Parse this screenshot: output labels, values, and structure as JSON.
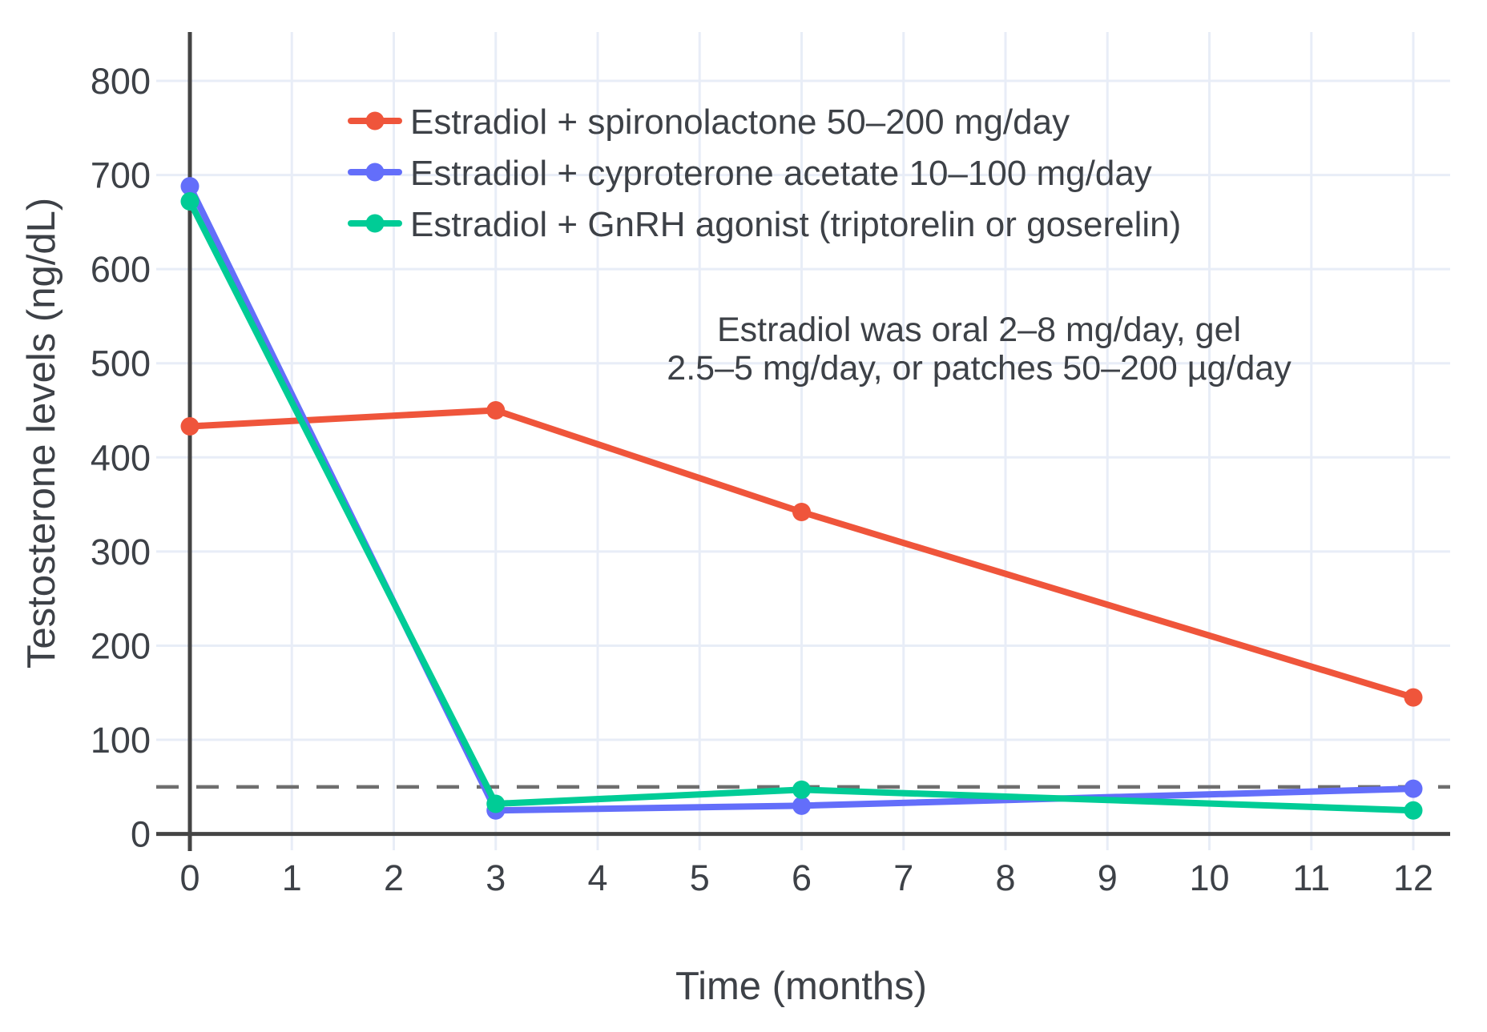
{
  "chart_data": {
    "type": "line",
    "title": "",
    "xlabel": "Time (months)",
    "ylabel": "Testosterone levels (ng/dL)",
    "x": [
      0,
      3,
      6,
      12
    ],
    "series": [
      {
        "name": "Estradiol + spironolactone 50–200 mg/day",
        "color": "#EF553B",
        "values": [
          433,
          450,
          342,
          145
        ]
      },
      {
        "name": "Estradiol + cyproterone acetate 10–100 mg/day",
        "color": "#636EFA",
        "values": [
          688,
          25,
          30,
          48
        ]
      },
      {
        "name": "Estradiol + GnRH agonist (triptorelin or goserelin)",
        "color": "#00CC96",
        "values": [
          672,
          32,
          47,
          25
        ]
      }
    ],
    "xticks": [
      0,
      1,
      2,
      3,
      4,
      5,
      6,
      7,
      8,
      9,
      10,
      11,
      12
    ],
    "yticks": [
      0,
      100,
      200,
      300,
      400,
      500,
      600,
      700,
      800
    ],
    "xlim": [
      0,
      12.36
    ],
    "ylim": [
      0,
      852
    ],
    "grid": true,
    "legend_position": "top-left-inside",
    "threshold_line": {
      "value": 50,
      "style": "dashed",
      "color": "#6e6e6e"
    },
    "annotation": {
      "line1": "Estradiol was oral 2–8 mg/day, gel",
      "line2": "2.5–5 mg/day, or patches 50–200 µg/day"
    },
    "colors": {
      "grid": "#E8EDF7",
      "axis_line": "#444444",
      "text": "#3d4147"
    }
  }
}
